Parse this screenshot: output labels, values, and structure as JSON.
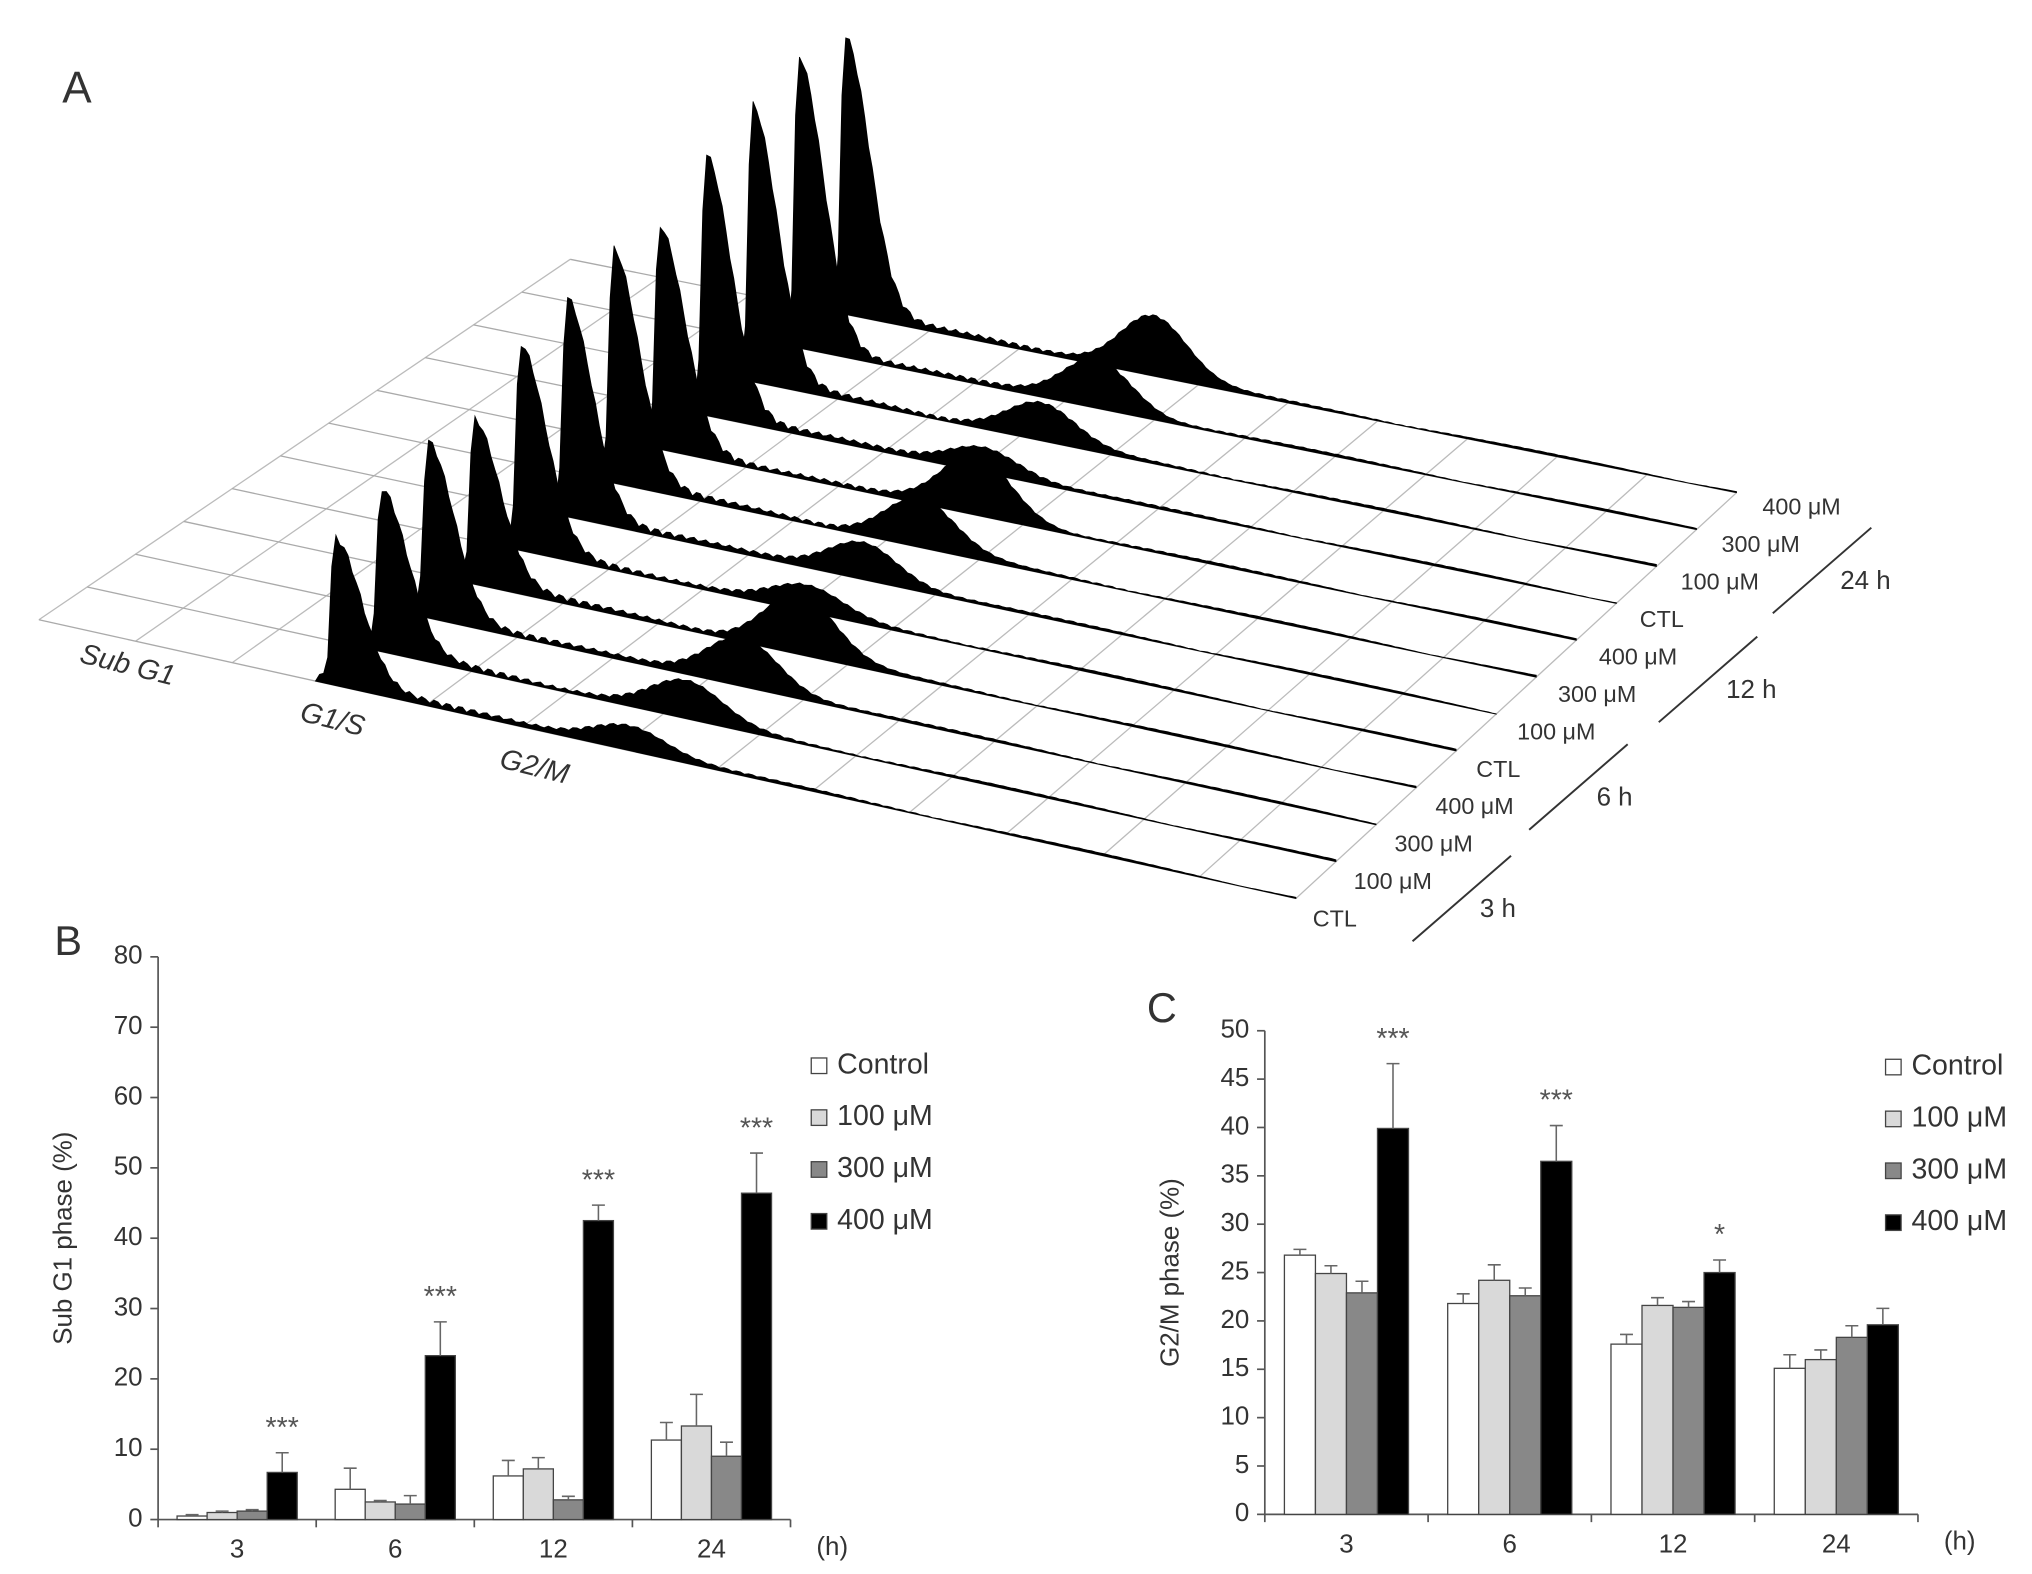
{
  "panel_a": {
    "panel_label": "A",
    "phases": [
      "Sub G1",
      "G1/S",
      "G2/M"
    ],
    "samples": [
      "CTL",
      "100 μM",
      "300 μM",
      "400 μM",
      "CTL",
      "100 μM",
      "300 μM",
      "400 μM",
      "CTL",
      "100 μM",
      "300 μM",
      "400 μM"
    ],
    "times": [
      "3 h",
      "6 h",
      "12 h",
      "24 h"
    ]
  },
  "chart_data": [
    {
      "type": "bar",
      "panel_label": "B",
      "ylabel": "Sub G1 phase (%)",
      "xlabel": "(h)",
      "categories": [
        "3",
        "6",
        "12",
        "24"
      ],
      "ylim": [
        0,
        80
      ],
      "yticks": [
        0,
        10,
        20,
        30,
        40,
        50,
        60,
        70,
        80
      ],
      "annotations": [
        "***",
        "***",
        "***",
        "***"
      ],
      "series": [
        {
          "name": "Control",
          "color": "#ffffff",
          "values": [
            0.5,
            4.3,
            6.2,
            11.3
          ],
          "errors": [
            0.2,
            3.0,
            2.2,
            2.5
          ]
        },
        {
          "name": "100 μM",
          "color": "#d9d9d9",
          "values": [
            1.0,
            2.5,
            7.2,
            13.3
          ],
          "errors": [
            0.2,
            0.2,
            1.6,
            4.5
          ]
        },
        {
          "name": "300 μM",
          "color": "#888888",
          "values": [
            1.2,
            2.2,
            2.8,
            9.0
          ],
          "errors": [
            0.2,
            1.2,
            0.5,
            2.0
          ]
        },
        {
          "name": "400 μM",
          "color": "#000000",
          "values": [
            6.7,
            23.3,
            42.5,
            46.4
          ],
          "errors": [
            2.8,
            4.8,
            2.2,
            5.7
          ]
        }
      ]
    },
    {
      "type": "bar",
      "panel_label": "C",
      "ylabel": "G2/M phase (%)",
      "xlabel": "(h)",
      "categories": [
        "3",
        "6",
        "12",
        "24"
      ],
      "ylim": [
        0,
        50
      ],
      "yticks": [
        0,
        5,
        10,
        15,
        20,
        25,
        30,
        35,
        40,
        45,
        50
      ],
      "annotations": [
        "***",
        "***",
        "*",
        null
      ],
      "series": [
        {
          "name": "Control",
          "color": "#ffffff",
          "values": [
            26.8,
            21.8,
            17.6,
            15.1
          ],
          "errors": [
            0.6,
            1.0,
            1.0,
            1.4
          ]
        },
        {
          "name": "100 μM",
          "color": "#d9d9d9",
          "values": [
            24.9,
            24.2,
            21.6,
            16.0
          ],
          "errors": [
            0.8,
            1.6,
            0.8,
            1.0
          ]
        },
        {
          "name": "300 μM",
          "color": "#888888",
          "values": [
            22.9,
            22.6,
            21.4,
            18.3
          ],
          "errors": [
            1.2,
            0.8,
            0.6,
            1.2
          ]
        },
        {
          "name": "400 μM",
          "color": "#000000",
          "values": [
            39.9,
            36.5,
            25.0,
            19.6
          ],
          "errors": [
            6.7,
            3.7,
            1.3,
            1.7
          ]
        }
      ]
    }
  ]
}
